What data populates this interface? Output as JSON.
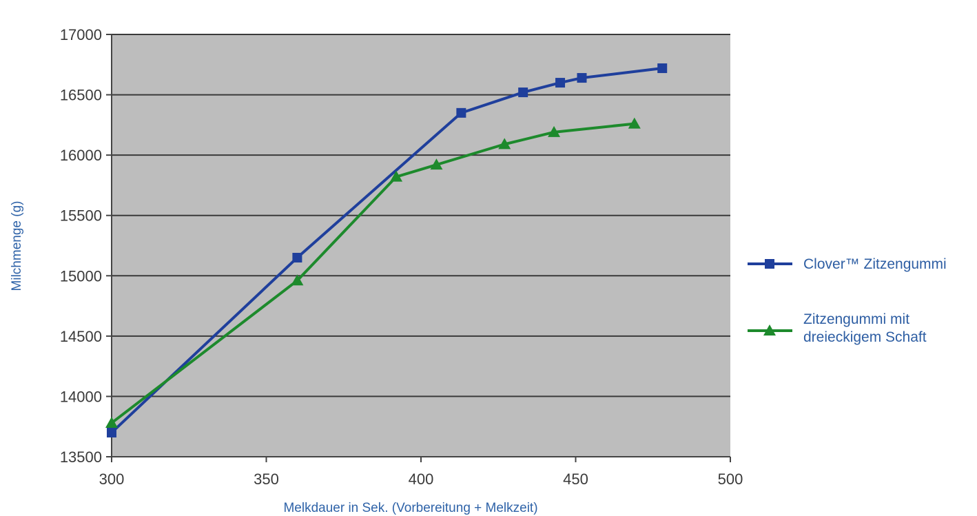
{
  "chart_data": {
    "type": "line",
    "xlabel": "Melkdauer in Sek. (Vorbereitung + Melkzeit)",
    "ylabel": "Milchmenge (g)",
    "xlim": [
      300,
      500
    ],
    "ylim": [
      13500,
      17000
    ],
    "xticks": [
      300,
      350,
      400,
      450,
      500
    ],
    "yticks": [
      13500,
      14000,
      14500,
      15000,
      15500,
      16000,
      16500,
      17000
    ],
    "grid": "horizontal",
    "legend_position": "right",
    "plot_background": "#bdbdbd",
    "series": [
      {
        "name": "Clover™ Zitzengummi",
        "legend_lines": [
          "Clover™ Zitzengummi"
        ],
        "color": "#1f3f9c",
        "marker": "square",
        "points": [
          [
            300,
            13700
          ],
          [
            360,
            15150
          ],
          [
            413,
            16350
          ],
          [
            433,
            16520
          ],
          [
            445,
            16600
          ],
          [
            452,
            16640
          ],
          [
            478,
            16720
          ]
        ]
      },
      {
        "name": "Zitzengummi mit dreieckigem Schaft",
        "legend_lines": [
          "Zitzengummi mit",
          "dreieckigem Schaft"
        ],
        "color": "#1d8a2c",
        "marker": "triangle",
        "points": [
          [
            300,
            13780
          ],
          [
            360,
            14960
          ],
          [
            392,
            15820
          ],
          [
            405,
            15920
          ],
          [
            427,
            16090
          ],
          [
            443,
            16190
          ],
          [
            469,
            16260
          ]
        ]
      }
    ]
  }
}
